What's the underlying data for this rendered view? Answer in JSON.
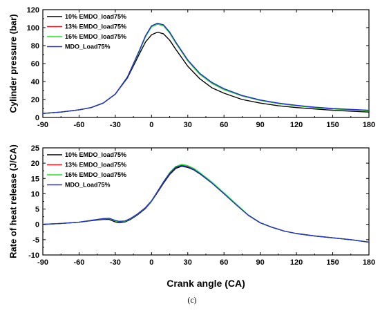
{
  "caption": "(c)",
  "colors": {
    "10% EMDO_load75%": "#000000",
    "13% EMDO_load75%": "#e8141b",
    "16% EMDO_load75%": "#17e817",
    "MDO_Load75%": "#1f2ed6"
  },
  "chart_data": [
    {
      "type": "line",
      "xlabel": "",
      "ylabel": "Cylinder pressure (bar)",
      "xlim": [
        -90,
        180
      ],
      "ylim": [
        0,
        120
      ],
      "xticks": [
        "-90",
        "-60",
        "-30",
        "0",
        "30",
        "60",
        "90",
        "120",
        "150",
        "180"
      ],
      "yticks": [
        "0",
        "20",
        "40",
        "60",
        "80",
        "100",
        "120"
      ],
      "legend_position": "top-left",
      "series": [
        {
          "name": "10% EMDO_load75%",
          "x": [
            -90,
            -75,
            -60,
            -50,
            -40,
            -30,
            -20,
            -10,
            -5,
            0,
            5,
            10,
            15,
            20,
            30,
            40,
            50,
            60,
            75,
            90,
            105,
            120,
            135,
            150,
            165,
            180
          ],
          "y": [
            4.5,
            6,
            8.5,
            11,
            16,
            26,
            44,
            71,
            84,
            92,
            95,
            93,
            86,
            76,
            57,
            43,
            33,
            27,
            20,
            16,
            13,
            11,
            9.5,
            8,
            7,
            6
          ]
        },
        {
          "name": "13% EMDO_load75%",
          "x": [
            -90,
            -75,
            -60,
            -50,
            -40,
            -30,
            -20,
            -10,
            -5,
            0,
            5,
            10,
            15,
            20,
            30,
            40,
            50,
            60,
            75,
            90,
            105,
            120,
            135,
            150,
            165,
            180
          ],
          "y": [
            4.5,
            6,
            8.5,
            11,
            16,
            26,
            45,
            74,
            90,
            101,
            104,
            102,
            94,
            83,
            63,
            48,
            38,
            31,
            24,
            19,
            15.5,
            13,
            11,
            9.5,
            8.5,
            7.5
          ]
        },
        {
          "name": "16% EMDO_load75%",
          "x": [
            -90,
            -75,
            -60,
            -50,
            -40,
            -30,
            -20,
            -10,
            -5,
            0,
            5,
            10,
            15,
            20,
            30,
            40,
            50,
            60,
            75,
            90,
            105,
            120,
            135,
            150,
            165,
            180
          ],
          "y": [
            4.5,
            6,
            8.5,
            11,
            16,
            26,
            45,
            74,
            90,
            101,
            104,
            102,
            94,
            83,
            63,
            48,
            38,
            31,
            24,
            19,
            15.5,
            13,
            11,
            9.5,
            8.5,
            7.5
          ]
        },
        {
          "name": "MDO_Load75%",
          "x": [
            -90,
            -75,
            -60,
            -50,
            -40,
            -30,
            -20,
            -10,
            -5,
            0,
            5,
            10,
            15,
            20,
            30,
            40,
            50,
            60,
            75,
            90,
            105,
            120,
            135,
            150,
            165,
            180
          ],
          "y": [
            4.5,
            6,
            8.5,
            11,
            16,
            26,
            45,
            75,
            91,
            102,
            105,
            103,
            95,
            84,
            64,
            49,
            39,
            32,
            24.5,
            19.5,
            16,
            13.5,
            11.5,
            10,
            9,
            8
          ]
        }
      ]
    },
    {
      "type": "line",
      "xlabel": "Crank angle (CA)",
      "ylabel": "Rate of heat release (J/CA)",
      "xlim": [
        -90,
        180
      ],
      "ylim": [
        -10,
        25
      ],
      "xticks": [
        "-90",
        "-60",
        "-30",
        "0",
        "30",
        "60",
        "90",
        "120",
        "150",
        "180"
      ],
      "yticks": [
        "-10",
        "-5",
        "0",
        "5",
        "10",
        "15",
        "20",
        "25"
      ],
      "legend_position": "top-left",
      "series": [
        {
          "name": "10% EMDO_load75%",
          "x": [
            -90,
            -75,
            -60,
            -50,
            -40,
            -35,
            -30,
            -27,
            -22,
            -18,
            -12,
            -5,
            0,
            5,
            10,
            15,
            20,
            25,
            30,
            35,
            40,
            50,
            60,
            70,
            80,
            90,
            100,
            110,
            120,
            135,
            150,
            165,
            180
          ],
          "y": [
            0,
            0.3,
            0.7,
            1.2,
            1.6,
            1.6,
            0.8,
            0.5,
            0.8,
            1.5,
            3,
            5.2,
            7.5,
            10.5,
            13.5,
            16.3,
            18.3,
            19,
            18.6,
            17.8,
            16.5,
            13.5,
            10,
            6.5,
            3,
            0.5,
            -1,
            -2.2,
            -3,
            -3.8,
            -4.4,
            -5,
            -5.8
          ]
        },
        {
          "name": "13% EMDO_load75%",
          "x": [
            -90,
            -75,
            -60,
            -50,
            -40,
            -35,
            -30,
            -27,
            -22,
            -18,
            -12,
            -5,
            0,
            5,
            10,
            15,
            20,
            25,
            30,
            35,
            40,
            50,
            60,
            70,
            80,
            90,
            100,
            110,
            120,
            135,
            150,
            165,
            180
          ],
          "y": [
            0,
            0.3,
            0.7,
            1.3,
            1.8,
            1.9,
            1.1,
            0.8,
            1.0,
            1.7,
            3.2,
            5.4,
            7.6,
            10.7,
            13.8,
            16.6,
            18.6,
            19.3,
            18.9,
            18,
            16.7,
            13.6,
            10.1,
            6.5,
            3,
            0.5,
            -1,
            -2.2,
            -3,
            -3.8,
            -4.4,
            -5,
            -5.8
          ]
        },
        {
          "name": "16% EMDO_load75%",
          "x": [
            -90,
            -75,
            -60,
            -50,
            -40,
            -35,
            -30,
            -27,
            -22,
            -18,
            -12,
            -5,
            0,
            5,
            10,
            15,
            20,
            25,
            30,
            35,
            40,
            50,
            60,
            70,
            80,
            90,
            100,
            110,
            120,
            135,
            150,
            165,
            180
          ],
          "y": [
            0,
            0.3,
            0.7,
            1.3,
            1.8,
            1.9,
            1.1,
            0.8,
            1.0,
            1.7,
            3.2,
            5.4,
            7.6,
            10.8,
            14,
            16.9,
            18.9,
            19.6,
            19.2,
            18.3,
            16.9,
            13.8,
            10.3,
            6.7,
            3.1,
            0.5,
            -1,
            -2.2,
            -3,
            -3.8,
            -4.4,
            -5,
            -5.8
          ]
        },
        {
          "name": "MDO_Load75%",
          "x": [
            -90,
            -75,
            -60,
            -50,
            -40,
            -35,
            -30,
            -27,
            -22,
            -18,
            -12,
            -5,
            0,
            5,
            10,
            15,
            20,
            25,
            30,
            35,
            40,
            50,
            60,
            70,
            80,
            90,
            100,
            110,
            120,
            135,
            150,
            165,
            180
          ],
          "y": [
            0,
            0.3,
            0.7,
            1.3,
            1.9,
            2.0,
            1.3,
            1.0,
            1.1,
            1.8,
            3.3,
            5.5,
            7.7,
            10.8,
            13.9,
            16.7,
            18.7,
            19.2,
            18.8,
            17.9,
            16.6,
            13.5,
            10,
            6.4,
            3,
            0.5,
            -1,
            -2.2,
            -3,
            -3.8,
            -4.4,
            -5,
            -5.8
          ]
        }
      ]
    }
  ]
}
